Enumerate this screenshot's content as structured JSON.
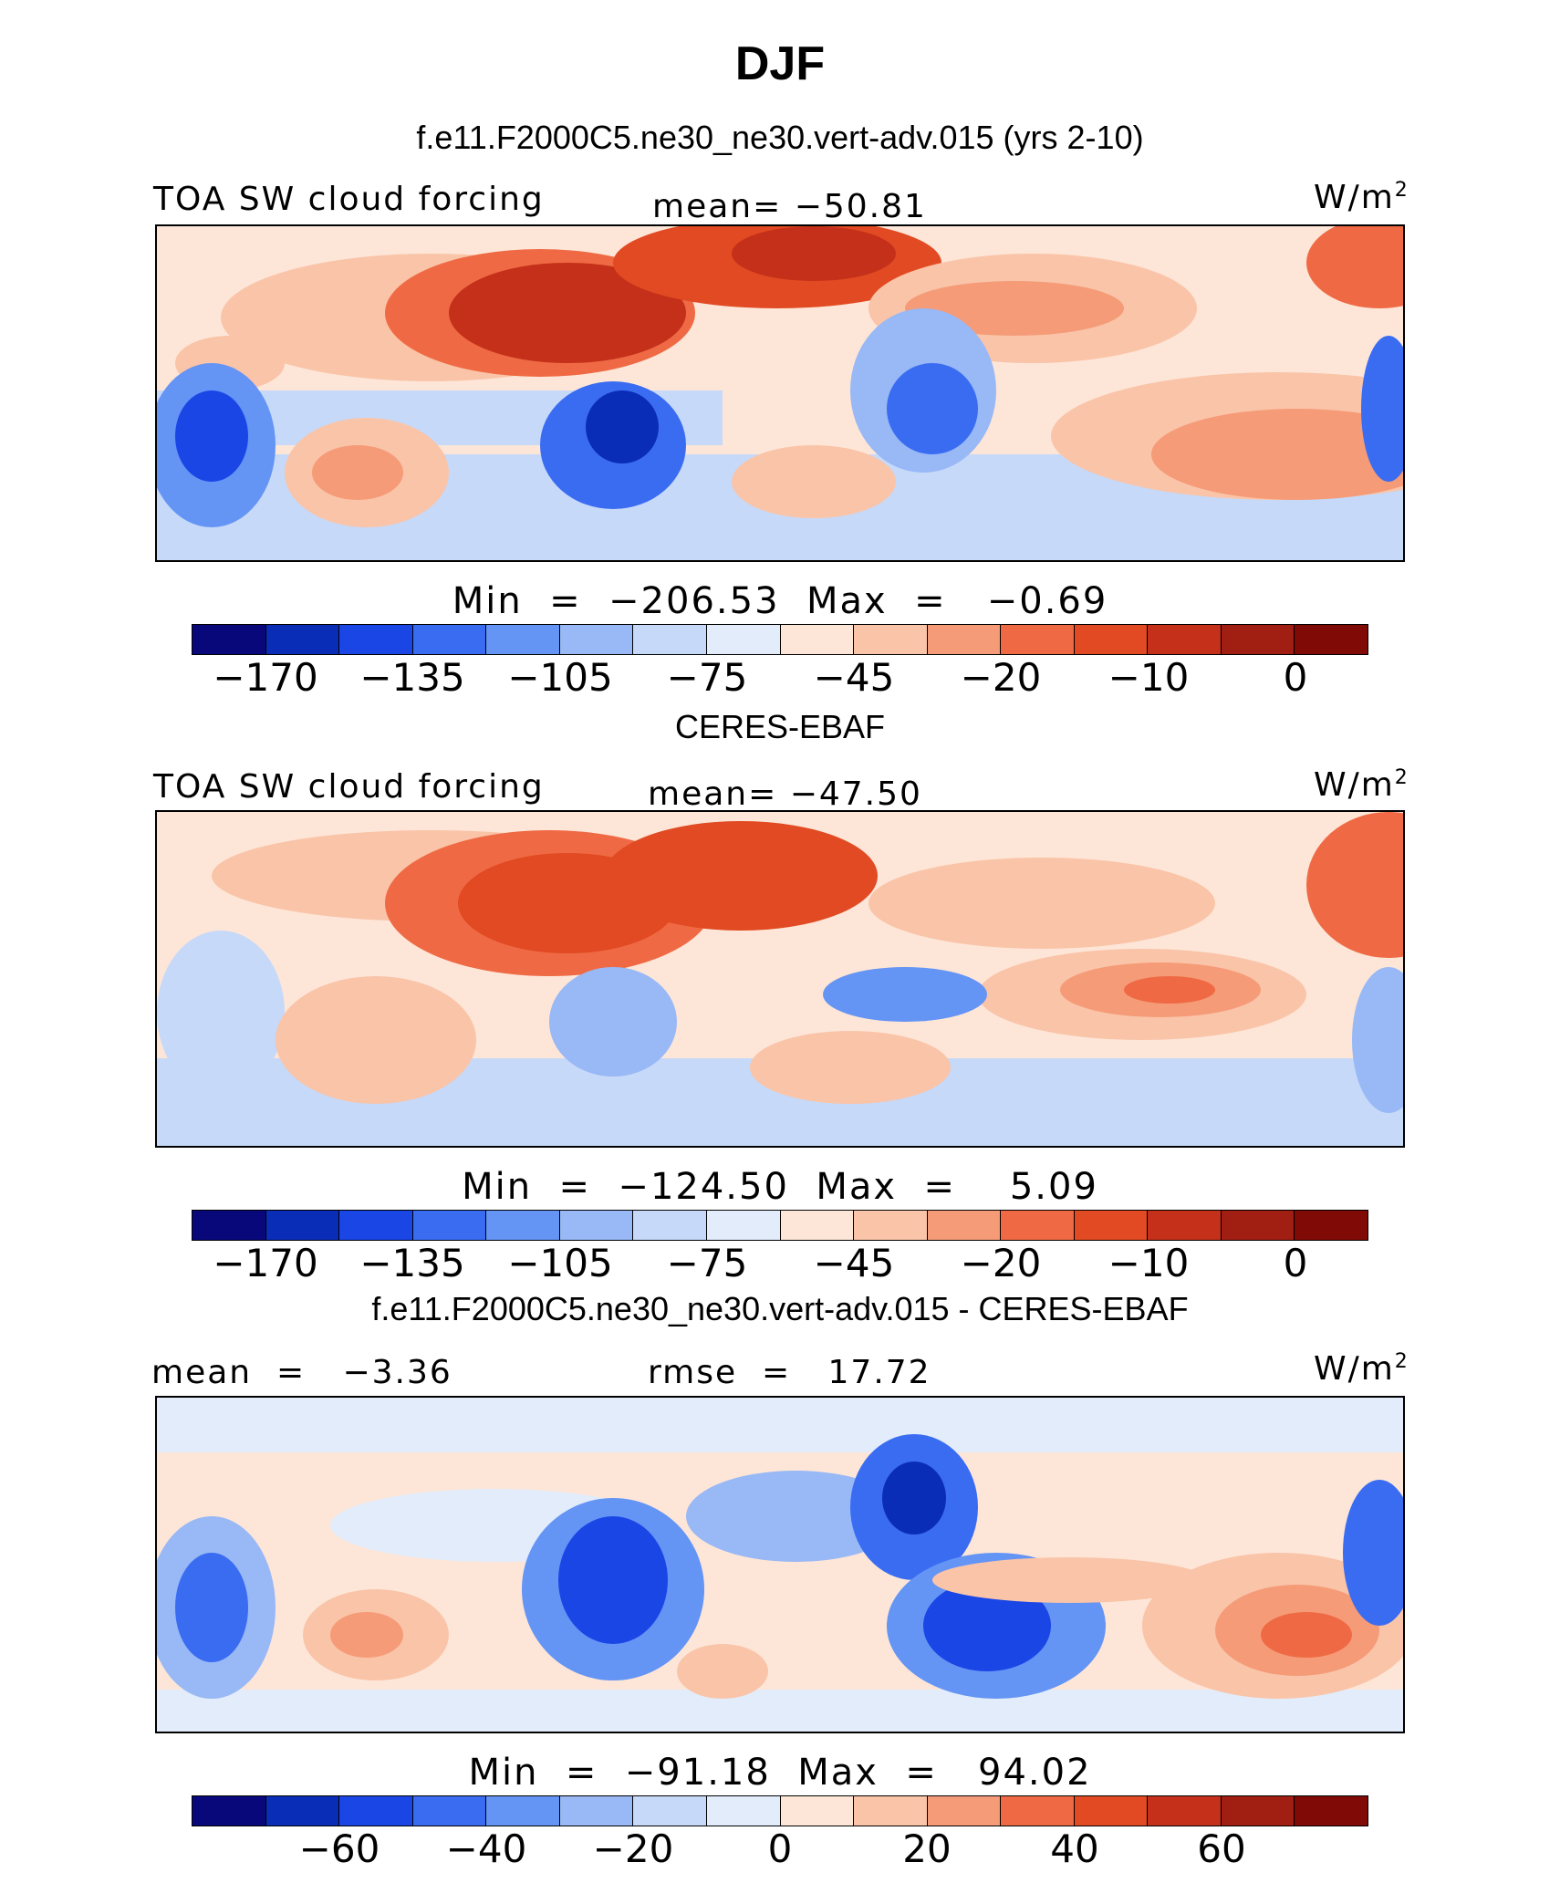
{
  "title": "DJF",
  "panels": [
    {
      "subtitle": "f.e11.F2000C5.ne30_ne30.vert-adv.015 (yrs 2-10)",
      "left_label": "TOA SW cloud forcing",
      "center_label": "mean= −50.81",
      "units": "W/m",
      "units_sup": "2",
      "minmax": "Min  =  −206.53  Max  =   −0.69",
      "ticks": [
        "−170",
        "−135",
        "−105",
        "−75",
        "−45",
        "−20",
        "−10",
        "0"
      ]
    },
    {
      "subtitle": "CERES-EBAF",
      "left_label": "TOA SW cloud forcing",
      "center_label": "mean= −47.50",
      "units": "W/m",
      "units_sup": "2",
      "minmax": "Min  =  −124.50  Max  =    5.09",
      "ticks": [
        "−170",
        "−135",
        "−105",
        "−75",
        "−45",
        "−20",
        "−10",
        "0"
      ]
    },
    {
      "subtitle": "f.e11.F2000C5.ne30_ne30.vert-adv.015 - CERES-EBAF",
      "left_label": "mean  =   −3.36",
      "center_label": "rmse  =   17.72",
      "units": "W/m",
      "units_sup": "2",
      "minmax": "Min  =  −91.18  Max  =   94.02",
      "ticks": [
        "−60",
        "−40",
        "−20",
        "0",
        "20",
        "40",
        "60"
      ]
    }
  ],
  "colorbar_colors": [
    "#08087a",
    "#0a2db8",
    "#1a46e6",
    "#3a6cf2",
    "#6494f4",
    "#98b8f6",
    "#c6d9f8",
    "#e2ecfa",
    "#fde6d8",
    "#fac4a8",
    "#f59b78",
    "#ef6a44",
    "#e14a22",
    "#c5301a",
    "#a01e12",
    "#800b06"
  ]
}
